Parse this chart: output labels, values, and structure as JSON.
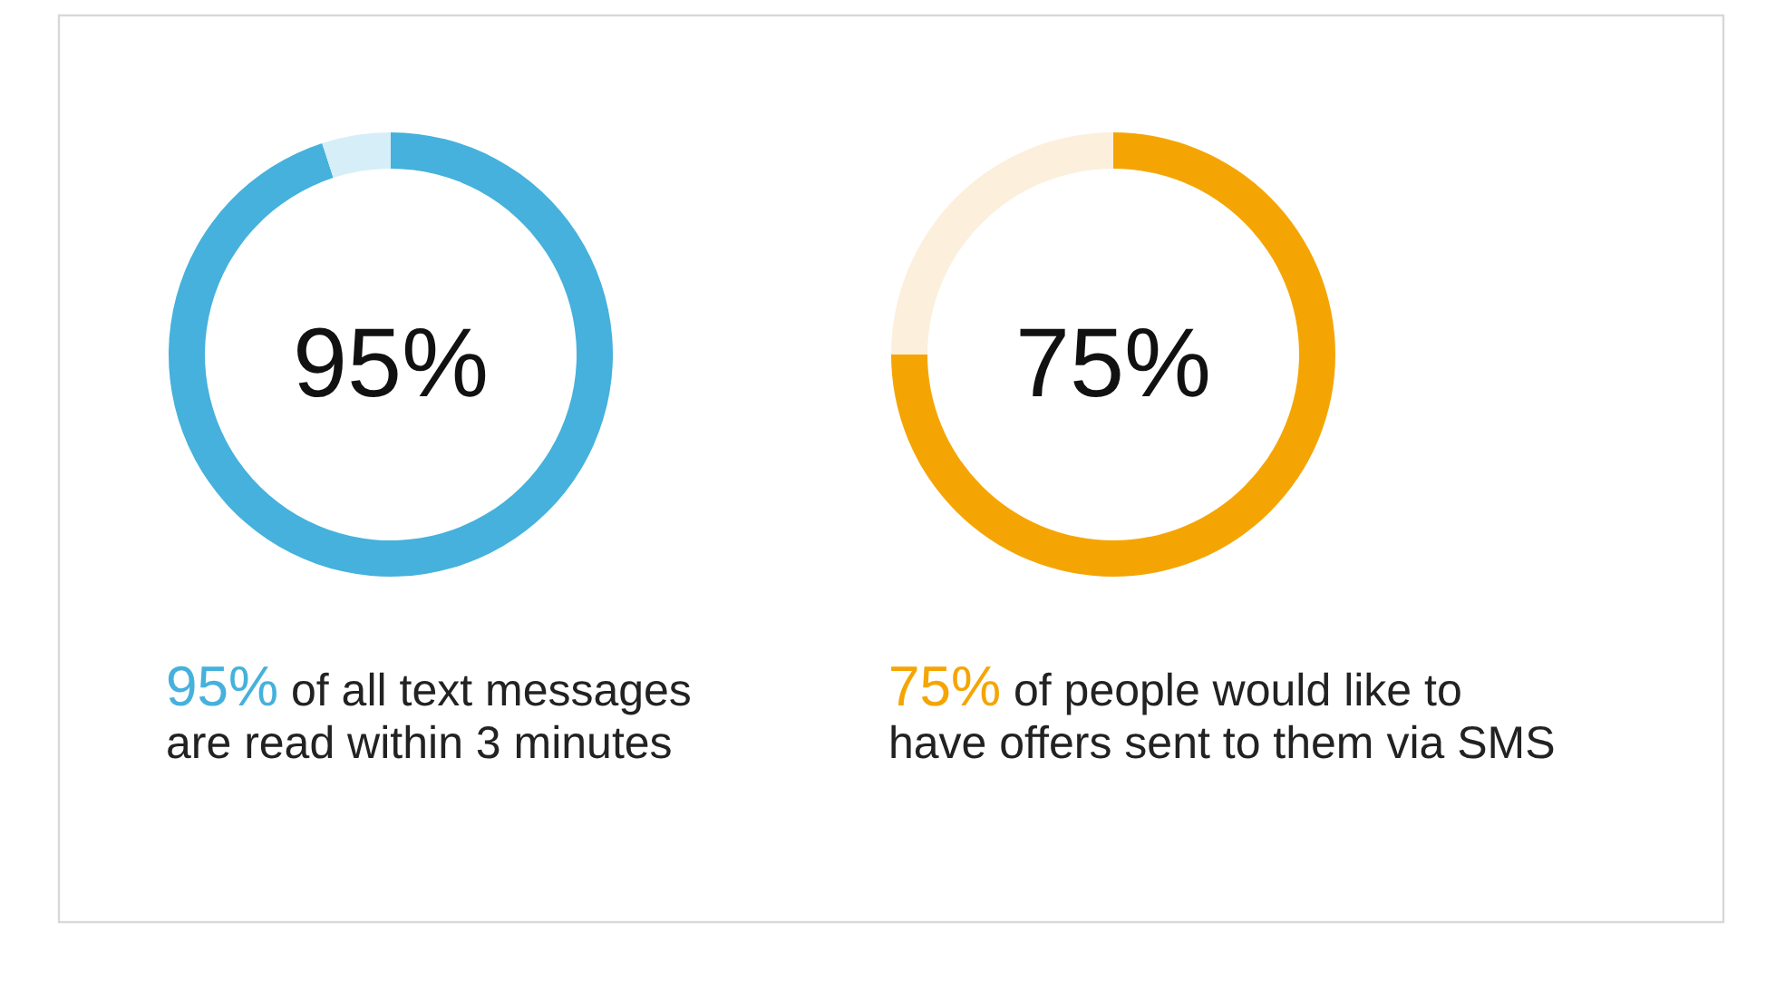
{
  "chart_data": [
    {
      "type": "donut",
      "categories": [
        null,
        null
      ],
      "values": [
        95,
        5
      ],
      "colors": [
        "#45b1dc",
        "#d6eef8"
      ],
      "annotations": [
        "95%",
        "95% of all text messages\nare read within 3 minutes"
      ]
    },
    {
      "type": "donut",
      "categories": [
        null,
        null
      ],
      "values": [
        75,
        25
      ],
      "colors": [
        "#f5a503",
        "#fcefdc"
      ],
      "annotations": [
        "75%",
        "75% of people would like to\nhave offers sent to them via SMS"
      ]
    }
  ]
}
